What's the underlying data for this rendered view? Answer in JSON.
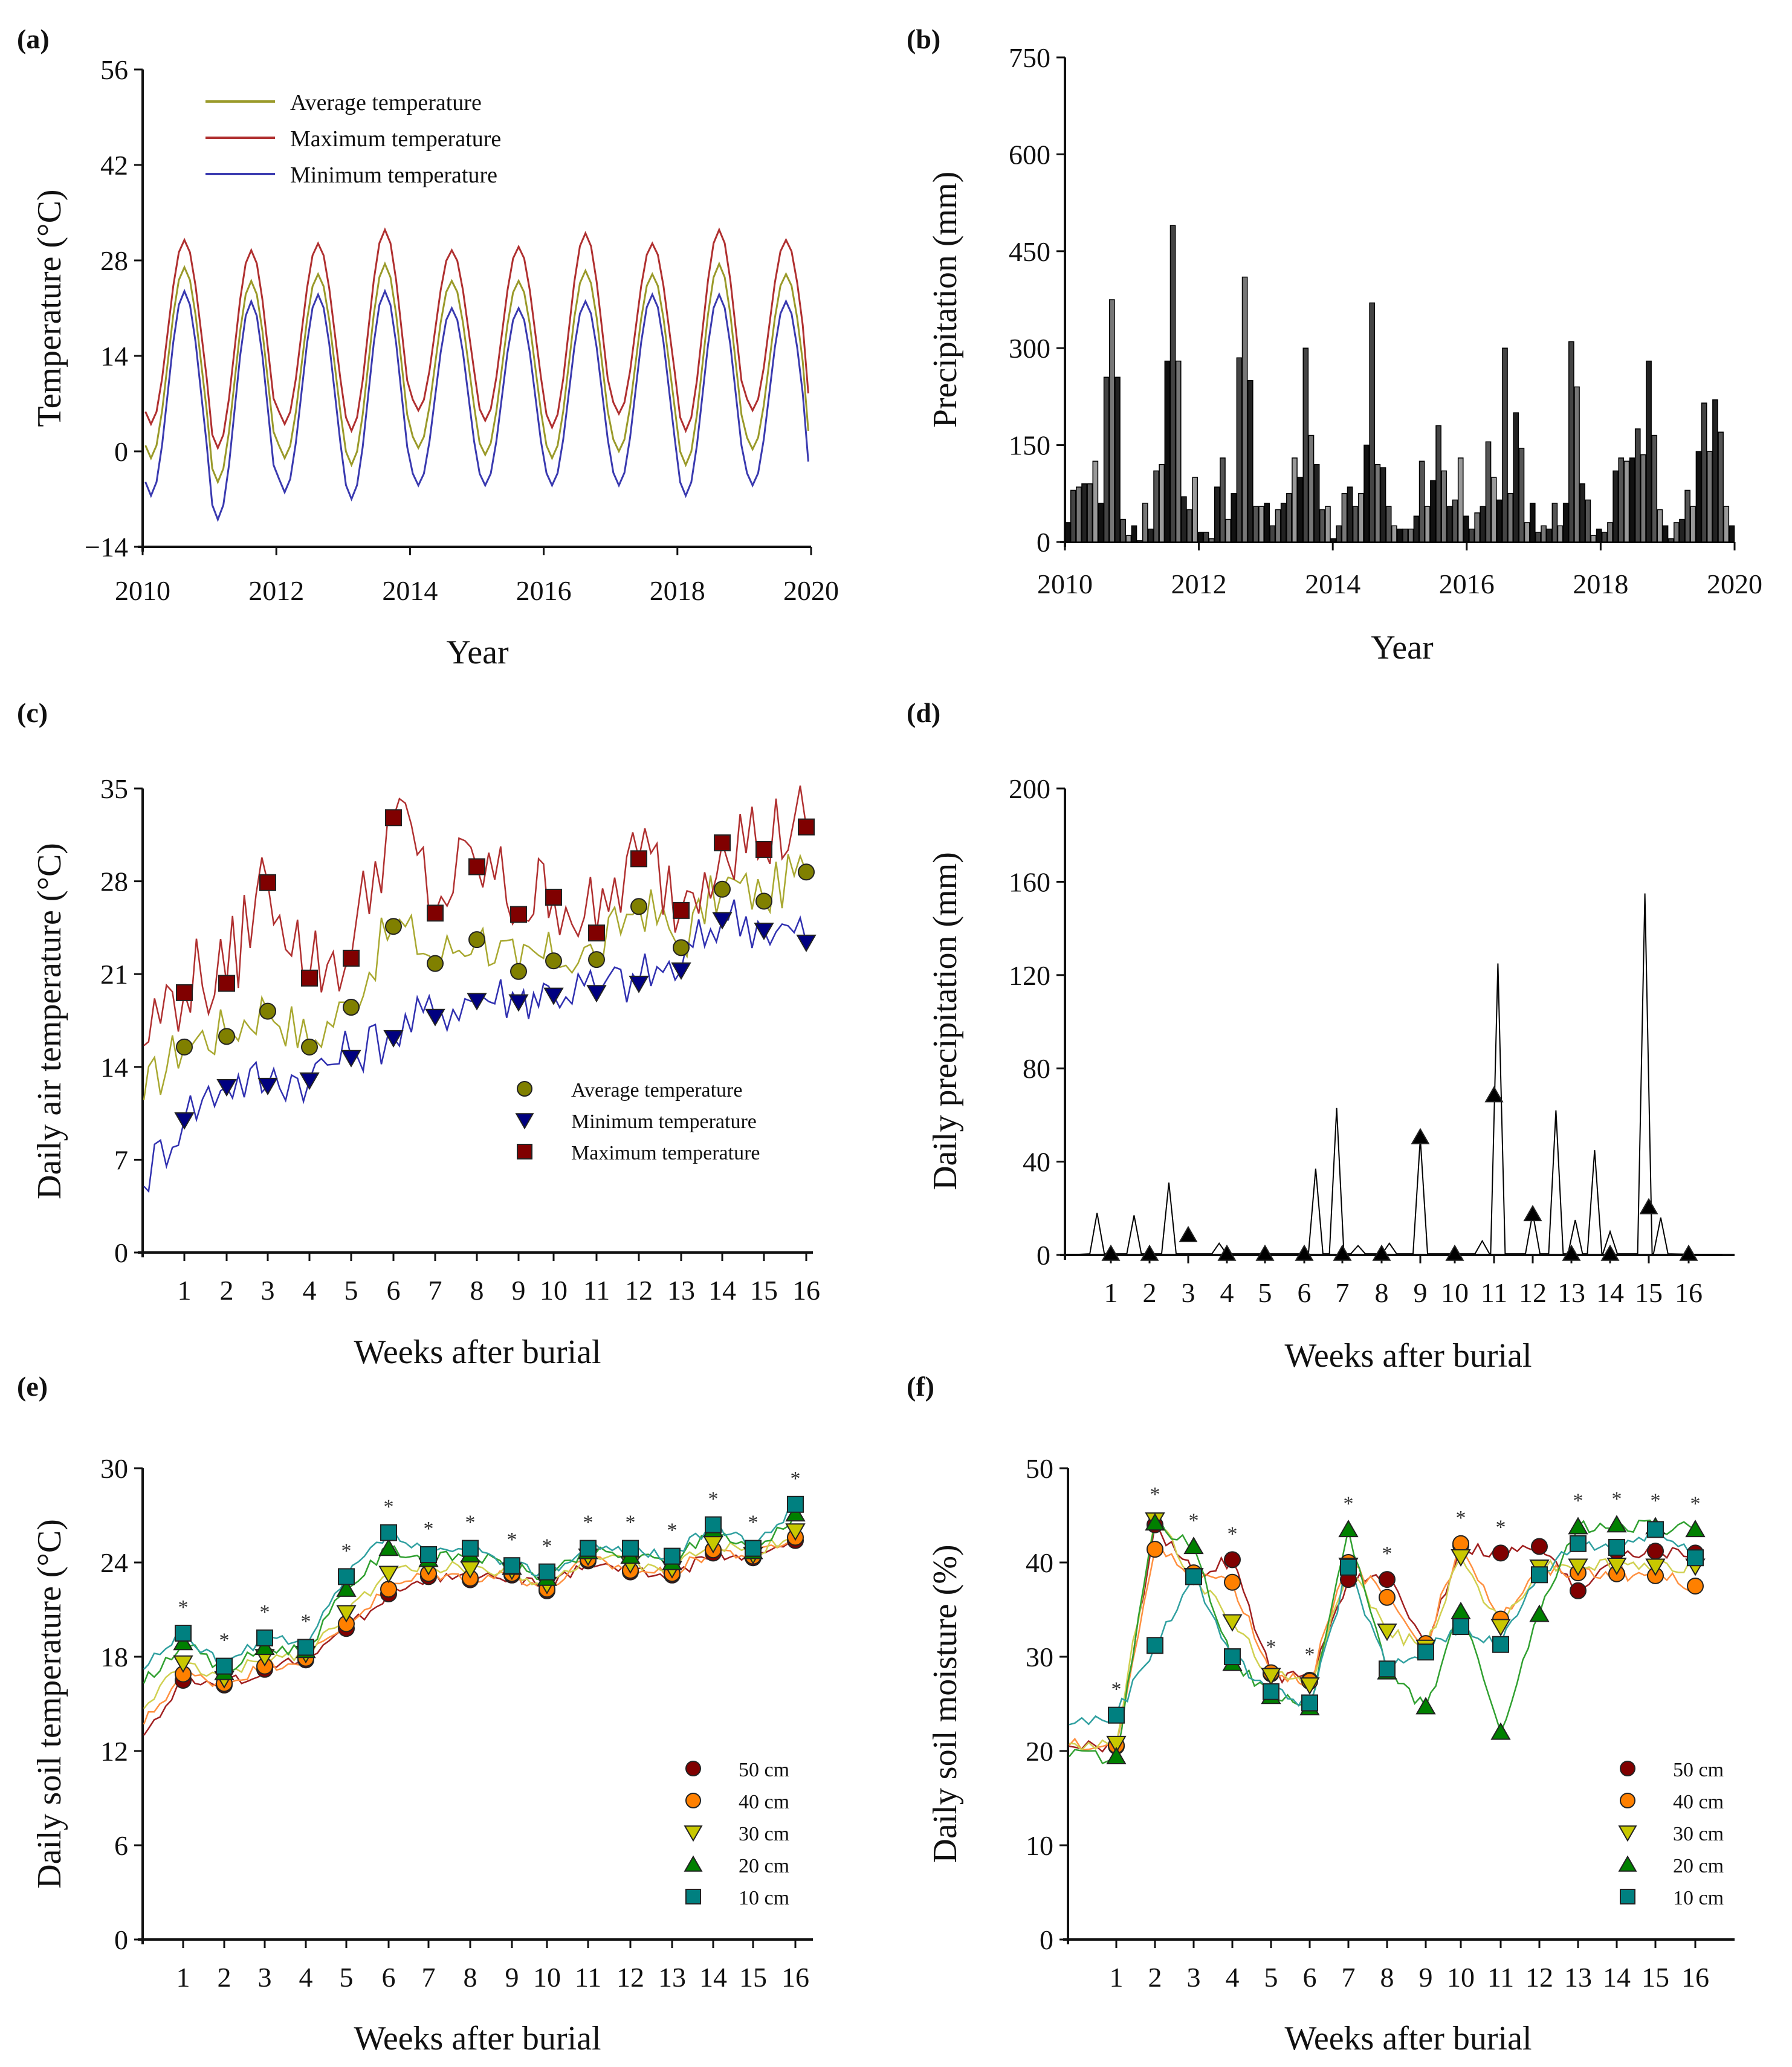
{
  "figure": {
    "panels": [
      "(a)",
      "(b)",
      "(c)",
      "(d)",
      "(e)",
      "(f)"
    ]
  },
  "chart_data": [
    {
      "id": "a",
      "panel_label": "(a)",
      "type": "line",
      "xlabel": "Year",
      "ylabel": "Temperature (°C)",
      "xlim": [
        2010,
        2020
      ],
      "ylim": [
        -14,
        56
      ],
      "xticks": [
        2010,
        2012,
        2014,
        2016,
        2018,
        2020
      ],
      "yticks": [
        -14,
        0,
        14,
        28,
        42,
        56
      ],
      "ytick_labels": [
        "−14",
        "0",
        "14",
        "28",
        "42",
        "56"
      ],
      "legend_position": "top-left",
      "series": [
        {
          "name": "Average temperature",
          "color": "#9a9a2a",
          "annual_peaks": [
            27,
            25,
            26,
            27.5,
            25,
            25,
            26.5,
            26,
            27.5,
            26
          ],
          "annual_troughs": [
            -1,
            -4.5,
            -1,
            -2,
            0.5,
            -0.5,
            -1,
            0,
            -2,
            0.3
          ],
          "end_value": 3
        },
        {
          "name": "Maximum temperature",
          "color": "#b03030",
          "annual_peaks": [
            31,
            29.5,
            30.5,
            32.5,
            29.5,
            30,
            32,
            30.5,
            32.5,
            31
          ],
          "annual_troughs": [
            4,
            0.5,
            4,
            3,
            6,
            4.5,
            3.5,
            5.5,
            3,
            6
          ],
          "end_value": 8.5
        },
        {
          "name": "Minimum temperature",
          "color": "#3a3ab0",
          "annual_peaks": [
            23.5,
            22,
            23,
            23.5,
            21,
            21,
            22,
            23,
            23,
            22
          ],
          "annual_troughs": [
            -6.5,
            -10,
            -6,
            -7,
            -5,
            -5,
            -5,
            -5,
            -6.5,
            -5
          ],
          "end_value": -1.5
        }
      ]
    },
    {
      "id": "b",
      "panel_label": "(b)",
      "type": "bar",
      "xlabel": "Year",
      "ylabel": "Precipitation (mm)",
      "xlim": [
        2010,
        2020
      ],
      "ylim": [
        0,
        750
      ],
      "xticks": [
        2010,
        2012,
        2014,
        2016,
        2018,
        2020
      ],
      "yticks": [
        0,
        150,
        300,
        450,
        600,
        750
      ],
      "series": [
        {
          "name": "Monthly precipitation",
          "values": [
            30,
            80,
            85,
            90,
            90,
            125,
            60,
            255,
            375,
            255,
            35,
            10,
            25,
            2,
            60,
            20,
            110,
            120,
            280,
            490,
            280,
            70,
            50,
            100,
            15,
            15,
            5,
            85,
            130,
            35,
            75,
            285,
            410,
            250,
            55,
            55,
            60,
            25,
            50,
            60,
            75,
            130,
            100,
            300,
            165,
            120,
            50,
            55,
            5,
            25,
            75,
            85,
            55,
            75,
            150,
            370,
            120,
            115,
            55,
            25,
            20,
            20,
            20,
            40,
            125,
            55,
            95,
            180,
            110,
            55,
            65,
            130,
            40,
            20,
            45,
            55,
            155,
            100,
            65,
            300,
            75,
            200,
            145,
            30,
            60,
            15,
            25,
            20,
            60,
            25,
            60,
            310,
            240,
            90,
            65,
            10,
            20,
            15,
            30,
            110,
            130,
            125,
            130,
            175,
            135,
            280,
            165,
            50,
            25,
            5,
            30,
            35,
            80,
            55,
            140,
            215,
            140,
            220,
            170,
            55,
            25
          ]
        }
      ]
    },
    {
      "id": "c",
      "panel_label": "(c)",
      "type": "line",
      "xlabel": "Weeks after burial",
      "ylabel": "Daily air temperature (°C)",
      "ylim": [
        0,
        35
      ],
      "yticks": [
        0,
        7,
        14,
        21,
        28,
        35
      ],
      "categories": [
        "1",
        "2",
        "3",
        "4",
        "5",
        "6",
        "7",
        "8",
        "9",
        "10",
        "11",
        "12",
        "13",
        "14",
        "15",
        "16"
      ],
      "legend_position": "middle-right",
      "series": [
        {
          "name": "Average temperature",
          "color": "#808000",
          "marker": "circle",
          "values": [
            15.5,
            16.3,
            18.2,
            15.5,
            18.5,
            24.6,
            21.8,
            23.6,
            21.2,
            22.0,
            22.1,
            26.1,
            23.0,
            27.4,
            26.5,
            28.7
          ]
        },
        {
          "name": "Minimum temperature",
          "color": "#000080",
          "marker": "triangle-down",
          "values": [
            10.0,
            12.5,
            12.6,
            13.0,
            14.7,
            16.2,
            17.8,
            19.0,
            18.9,
            19.4,
            19.6,
            20.3,
            21.3,
            25.1,
            24.3,
            23.4
          ]
        },
        {
          "name": "Maximum temperature",
          "color": "#800000",
          "marker": "square",
          "values": [
            19.6,
            20.3,
            27.9,
            20.7,
            22.2,
            32.8,
            25.6,
            29.1,
            25.5,
            26.8,
            24.1,
            29.7,
            25.8,
            30.9,
            30.4,
            32.1
          ]
        }
      ]
    },
    {
      "id": "d",
      "panel_label": "(d)",
      "type": "line",
      "xlabel": "Weeks after burial",
      "ylabel": "Daily precipitation (mm)",
      "ylim": [
        0,
        200
      ],
      "yticks": [
        0,
        40,
        80,
        120,
        160,
        200
      ],
      "categories": [
        "1",
        "2",
        "3",
        "4",
        "5",
        "6",
        "7",
        "8",
        "9",
        "10",
        "11",
        "12",
        "13",
        "14",
        "15",
        "16"
      ],
      "series": [
        {
          "name": "Weekly precipitation",
          "color": "#000000",
          "marker": "triangle-up",
          "values": [
            0,
            0,
            8,
            0,
            0,
            0,
            0,
            0,
            50,
            0,
            68,
            17,
            0,
            0,
            20,
            0
          ]
        },
        {
          "name": "Daily precipitation peaks",
          "color": "#000000",
          "peaks": [
            {
              "week": 0.7,
              "value": 18
            },
            {
              "week": 1.6,
              "value": 17
            },
            {
              "week": 2.5,
              "value": 31
            },
            {
              "week": 3.8,
              "value": 5
            },
            {
              "week": 6.3,
              "value": 37
            },
            {
              "week": 6.85,
              "value": 63
            },
            {
              "week": 7.4,
              "value": 4
            },
            {
              "week": 8.2,
              "value": 5
            },
            {
              "week": 9.0,
              "value": 50
            },
            {
              "week": 10.7,
              "value": 6
            },
            {
              "week": 11.1,
              "value": 125
            },
            {
              "week": 12.0,
              "value": 18
            },
            {
              "week": 12.6,
              "value": 62
            },
            {
              "week": 13.1,
              "value": 15
            },
            {
              "week": 13.6,
              "value": 45
            },
            {
              "week": 14.0,
              "value": 10
            },
            {
              "week": 14.9,
              "value": 155
            },
            {
              "week": 15.3,
              "value": 16
            }
          ]
        }
      ]
    },
    {
      "id": "e",
      "panel_label": "(e)",
      "type": "line",
      "xlabel": "Weeks after burial",
      "ylabel": "Daily soil temperature (°C)",
      "ylim": [
        0,
        30
      ],
      "yticks": [
        0,
        6,
        12,
        18,
        24,
        30
      ],
      "categories": [
        "1",
        "2",
        "3",
        "4",
        "5",
        "6",
        "7",
        "8",
        "9",
        "10",
        "11",
        "12",
        "13",
        "14",
        "15",
        "16"
      ],
      "significance": [
        "*",
        "*",
        "*",
        "*",
        "*",
        "*",
        "*",
        "*",
        "*",
        "*",
        "*",
        "*",
        "*",
        "*",
        "*",
        "*"
      ],
      "legend_position": "bottom-right",
      "series": [
        {
          "name": "50 cm",
          "color": "#800000",
          "marker": "circle",
          "values": [
            16.5,
            16.2,
            17.2,
            17.8,
            19.8,
            22.0,
            23.1,
            22.9,
            23.2,
            22.2,
            24.1,
            23.4,
            23.2,
            24.6,
            24.3,
            25.4
          ]
        },
        {
          "name": "40 cm",
          "color": "#ff8000",
          "marker": "circle",
          "values": [
            16.9,
            16.3,
            17.4,
            17.9,
            20.1,
            22.3,
            23.3,
            23.0,
            23.3,
            22.3,
            24.2,
            23.5,
            23.3,
            24.8,
            24.4,
            25.6
          ]
        },
        {
          "name": "30 cm",
          "color": "#c8c800",
          "marker": "triangle-down",
          "values": [
            17.6,
            16.6,
            18.0,
            18.2,
            20.8,
            23.3,
            23.8,
            23.6,
            23.5,
            22.6,
            24.4,
            23.9,
            23.6,
            25.2,
            24.5,
            26.0
          ]
        },
        {
          "name": "20 cm",
          "color": "#008000",
          "marker": "triangle-up",
          "values": [
            18.9,
            17.0,
            18.6,
            18.4,
            22.3,
            24.9,
            24.2,
            24.5,
            23.7,
            23.0,
            24.7,
            24.4,
            24.0,
            26.1,
            24.7,
            27.1
          ]
        },
        {
          "name": "10 cm",
          "color": "#008080",
          "marker": "square",
          "values": [
            19.5,
            17.4,
            19.2,
            18.6,
            23.1,
            25.9,
            24.5,
            24.9,
            23.8,
            23.4,
            24.9,
            24.9,
            24.4,
            26.4,
            24.9,
            27.7
          ]
        }
      ]
    },
    {
      "id": "f",
      "panel_label": "(f)",
      "type": "line",
      "xlabel": "Weeks after burial",
      "ylabel": "Daily soil moisture (%)",
      "ylim": [
        0,
        50
      ],
      "yticks": [
        0,
        10,
        20,
        30,
        40,
        50
      ],
      "categories": [
        "1",
        "2",
        "3",
        "4",
        "5",
        "6",
        "7",
        "8",
        "9",
        "10",
        "11",
        "12",
        "13",
        "14",
        "15",
        "16"
      ],
      "significance": [
        "*",
        "*",
        "*",
        "*",
        "*",
        "*",
        "*",
        "*",
        "",
        "*",
        "*",
        "",
        "*",
        "*",
        "*",
        "*"
      ],
      "legend_position": "bottom-right",
      "series": [
        {
          "name": "50 cm",
          "color": "#800000",
          "marker": "circle",
          "values": [
            20.5,
            44.0,
            38.8,
            40.3,
            28.2,
            27.5,
            38.2,
            38.2,
            31.3,
            41.8,
            41.0,
            41.7,
            37.0,
            41.2,
            41.2,
            41.0
          ]
        },
        {
          "name": "40 cm",
          "color": "#ff8000",
          "marker": "circle",
          "values": [
            20.6,
            41.4,
            38.9,
            37.9,
            28.3,
            27.4,
            40.0,
            36.3,
            31.4,
            42.0,
            34.0,
            39.0,
            38.9,
            38.8,
            38.6,
            37.5
          ]
        },
        {
          "name": "30 cm",
          "color": "#c8c800",
          "marker": "triangle-down",
          "values": [
            20.8,
            44.5,
            38.6,
            33.7,
            28.0,
            27.0,
            39.7,
            32.7,
            31.0,
            40.6,
            33.2,
            39.5,
            39.6,
            39.7,
            39.6,
            39.6
          ]
        },
        {
          "name": "20 cm",
          "color": "#008000",
          "marker": "triangle-up",
          "values": [
            19.4,
            44.2,
            41.7,
            29.3,
            25.8,
            24.6,
            43.5,
            28.4,
            24.7,
            34.8,
            22.0,
            34.5,
            43.8,
            44.0,
            43.8,
            43.5
          ]
        },
        {
          "name": "10 cm",
          "color": "#008080",
          "marker": "square",
          "values": [
            23.8,
            31.2,
            38.5,
            30.0,
            26.3,
            25.1,
            39.5,
            28.7,
            30.5,
            33.2,
            31.3,
            38.7,
            42.0,
            41.6,
            43.5,
            40.5
          ]
        }
      ]
    }
  ]
}
